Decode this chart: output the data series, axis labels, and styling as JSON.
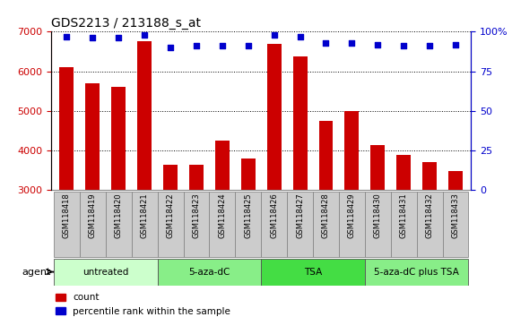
{
  "title": "GDS2213 / 213188_s_at",
  "samples": [
    "GSM118418",
    "GSM118419",
    "GSM118420",
    "GSM118421",
    "GSM118422",
    "GSM118423",
    "GSM118424",
    "GSM118425",
    "GSM118426",
    "GSM118427",
    "GSM118428",
    "GSM118429",
    "GSM118430",
    "GSM118431",
    "GSM118432",
    "GSM118433"
  ],
  "counts": [
    6100,
    5700,
    5600,
    6750,
    3650,
    3650,
    4250,
    3800,
    6700,
    6380,
    4750,
    5000,
    4150,
    3900,
    3700,
    3480
  ],
  "percentile_ranks": [
    97,
    96,
    96,
    98,
    90,
    91,
    91,
    91,
    98,
    97,
    93,
    93,
    92,
    91,
    91,
    92
  ],
  "bar_color": "#cc0000",
  "dot_color": "#0000cc",
  "ylim_left": [
    3000,
    7000
  ],
  "ylim_right": [
    0,
    100
  ],
  "yticks_left": [
    3000,
    4000,
    5000,
    6000,
    7000
  ],
  "yticks_right": [
    0,
    25,
    50,
    75,
    100
  ],
  "groups": [
    {
      "label": "untreated",
      "start": 0,
      "end": 3,
      "color": "#ccffcc"
    },
    {
      "label": "5-aza-dC",
      "start": 4,
      "end": 7,
      "color": "#88ee88"
    },
    {
      "label": "TSA",
      "start": 8,
      "end": 11,
      "color": "#44dd44"
    },
    {
      "label": "5-aza-dC plus TSA",
      "start": 12,
      "end": 15,
      "color": "#88ee88"
    }
  ],
  "agent_label": "agent",
  "legend_count_label": "count",
  "legend_pct_label": "percentile rank within the sample",
  "grid_color": "#000000",
  "tick_label_color_left": "#cc0000",
  "tick_label_color_right": "#0000cc",
  "xtick_bg_color": "#cccccc",
  "xtick_border_color": "#888888",
  "plot_bg_color": "#ffffff"
}
